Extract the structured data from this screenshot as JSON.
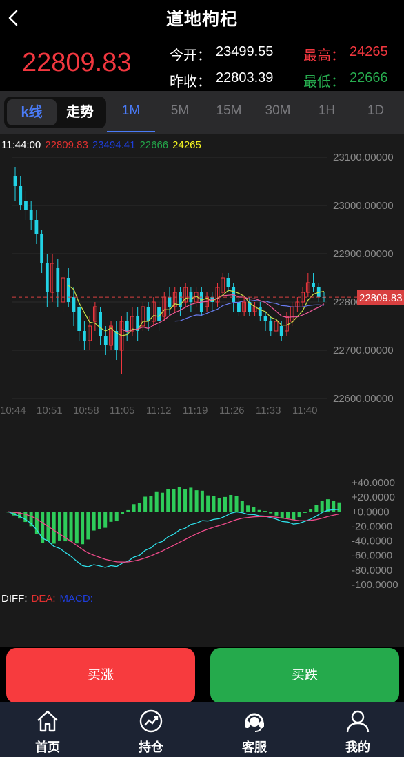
{
  "header": {
    "title": "道地枸杞"
  },
  "quote": {
    "last_price": "22809.83",
    "open_label": "今开：",
    "open": "23499.55",
    "high_label": "最高：",
    "high": "24265",
    "prev_close_label": "昨收：",
    "prev_close": "22803.39",
    "low_label": "最低：",
    "low": "22666"
  },
  "chart_mode": {
    "kline_label": "k线",
    "trend_label": "走势"
  },
  "timeframes": [
    "1M",
    "5M",
    "15M",
    "30M",
    "1H",
    "1D"
  ],
  "active_timeframe": "1M",
  "info_line": {
    "time": "11:44:00",
    "v1": "22809.83",
    "v2": "23494.41",
    "v3": "22666",
    "v4": "24265"
  },
  "price_axis": [
    "23100.00000",
    "23000.00000",
    "22900.00000",
    "22800.00000",
    "22700.00000",
    "22600.00000"
  ],
  "price_tag": "22809.83",
  "time_axis": [
    "10:44",
    "10:51",
    "10:58",
    "11:05",
    "11:12",
    "11:19",
    "11:26",
    "11:33",
    "11:40"
  ],
  "macd_axis": [
    "+40.0000",
    "+20.0000",
    "+0.0000",
    "-20.0000",
    "-40.0000",
    "-60.0000",
    "-80.0000",
    "-100.0000"
  ],
  "macd_legend": {
    "diff": "DIFF:",
    "dea": "DEA:",
    "macd": "MACD:"
  },
  "buttons": {
    "buy_up": "买涨",
    "buy_down": "买跌"
  },
  "nav": [
    "首页",
    "持仓",
    "客服",
    "我的"
  ],
  "colors": {
    "up": "#f2373f",
    "down": "#22d3e6",
    "accent": "#4a7bf7",
    "macd_bar": "#2ecc5a"
  },
  "chart_data": {
    "type": "candlestick",
    "ylim": [
      22600,
      23100
    ],
    "macd_ylim": [
      -100,
      40
    ],
    "candles": [
      [
        23060,
        23040,
        23080,
        23010
      ],
      [
        23040,
        23000,
        23060,
        22990
      ],
      [
        23010,
        22990,
        23030,
        22970
      ],
      [
        22990,
        22970,
        23010,
        22950
      ],
      [
        22970,
        22940,
        22990,
        22920
      ],
      [
        22940,
        22880,
        22950,
        22860
      ],
      [
        22880,
        22820,
        22900,
        22790
      ],
      [
        22820,
        22880,
        22900,
        22800
      ],
      [
        22870,
        22820,
        22890,
        22790
      ],
      [
        22800,
        22850,
        22860,
        22780
      ],
      [
        22850,
        22800,
        22870,
        22790
      ],
      [
        22810,
        22780,
        22830,
        22750
      ],
      [
        22790,
        22740,
        22800,
        22720
      ],
      [
        22740,
        22720,
        22760,
        22700
      ],
      [
        22720,
        22750,
        22770,
        22700
      ],
      [
        22760,
        22790,
        22800,
        22740
      ],
      [
        22780,
        22730,
        22790,
        22710
      ],
      [
        22730,
        22710,
        22750,
        22690
      ],
      [
        22710,
        22750,
        22760,
        22700
      ],
      [
        22740,
        22700,
        22760,
        22680
      ],
      [
        22700,
        22760,
        22770,
        22650
      ],
      [
        22760,
        22740,
        22780,
        22720
      ],
      [
        22740,
        22770,
        22790,
        22730
      ],
      [
        22770,
        22740,
        22790,
        22720
      ],
      [
        22750,
        22790,
        22800,
        22740
      ],
      [
        22790,
        22760,
        22800,
        22740
      ],
      [
        22760,
        22800,
        22810,
        22750
      ],
      [
        22790,
        22760,
        22800,
        22740
      ],
      [
        22770,
        22810,
        22820,
        22760
      ],
      [
        22810,
        22790,
        22830,
        22770
      ],
      [
        22790,
        22820,
        22830,
        22780
      ],
      [
        22820,
        22790,
        22830,
        22770
      ],
      [
        22800,
        22830,
        22840,
        22790
      ],
      [
        22820,
        22800,
        22830,
        22780
      ],
      [
        22800,
        22820,
        22830,
        22790
      ],
      [
        22820,
        22780,
        22830,
        22770
      ],
      [
        22790,
        22810,
        22820,
        22780
      ],
      [
        22810,
        22800,
        22820,
        22780
      ],
      [
        22800,
        22830,
        22840,
        22790
      ],
      [
        22820,
        22850,
        22860,
        22810
      ],
      [
        22850,
        22830,
        22860,
        22820
      ],
      [
        22830,
        22800,
        22840,
        22780
      ],
      [
        22800,
        22780,
        22810,
        22770
      ],
      [
        22780,
        22800,
        22810,
        22770
      ],
      [
        22800,
        22780,
        22810,
        22770
      ],
      [
        22780,
        22790,
        22800,
        22770
      ],
      [
        22790,
        22770,
        22800,
        22760
      ],
      [
        22770,
        22760,
        22780,
        22740
      ],
      [
        22760,
        22740,
        22770,
        22730
      ],
      [
        22740,
        22760,
        22770,
        22730
      ],
      [
        22750,
        22730,
        22760,
        22720
      ],
      [
        22740,
        22770,
        22780,
        22730
      ],
      [
        22760,
        22790,
        22800,
        22750
      ],
      [
        22790,
        22800,
        22810,
        22780
      ],
      [
        22800,
        22820,
        22830,
        22790
      ],
      [
        22820,
        22840,
        22860,
        22810
      ],
      [
        22840,
        22830,
        22860,
        22820
      ],
      [
        22830,
        22810,
        22840,
        22800
      ],
      [
        22810,
        22809.83,
        22820,
        22800
      ]
    ]
  }
}
